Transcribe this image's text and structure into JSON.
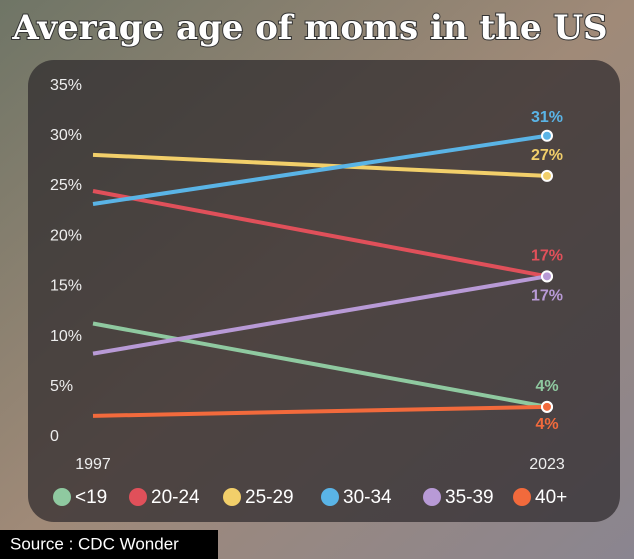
{
  "chart_data": {
    "type": "line",
    "title": "Average age of moms in the US",
    "categories": [
      "1997",
      "2023"
    ],
    "series": [
      {
        "name": "<19",
        "color": "#8fc9a0",
        "values": [
          12.3,
          4
        ],
        "value_labels": [
          null,
          "4%"
        ]
      },
      {
        "name": "20-24",
        "color": "#e0505a",
        "values": [
          25.5,
          17
        ],
        "value_labels": [
          null,
          "17%"
        ]
      },
      {
        "name": "25-29",
        "color": "#f2cf6a",
        "values": [
          29.1,
          27
        ],
        "value_labels": [
          null,
          "27%"
        ]
      },
      {
        "name": "30-34",
        "color": "#5ab4e6",
        "values": [
          24.2,
          31
        ],
        "value_labels": [
          null,
          "31%"
        ]
      },
      {
        "name": "35-39",
        "color": "#b89ad6",
        "values": [
          9.3,
          17
        ],
        "value_labels": [
          null,
          "17%"
        ]
      },
      {
        "name": "40+",
        "color": "#f26a3c",
        "values": [
          3.1,
          4
        ],
        "value_labels": [
          null,
          "4%"
        ]
      }
    ],
    "ylim": [
      0,
      35
    ],
    "yticks": [
      0,
      {
        "value": 5,
        "label": "5%"
      },
      {
        "value": 10,
        "label": "10%"
      },
      {
        "value": 15,
        "label": "15%"
      },
      {
        "value": 20,
        "label": "20%"
      },
      {
        "value": 25,
        "label": "25%"
      },
      {
        "value": 30,
        "label": "30%"
      },
      {
        "value": 35,
        "label": "35%"
      }
    ],
    "source": "Source : CDC Wonder"
  }
}
